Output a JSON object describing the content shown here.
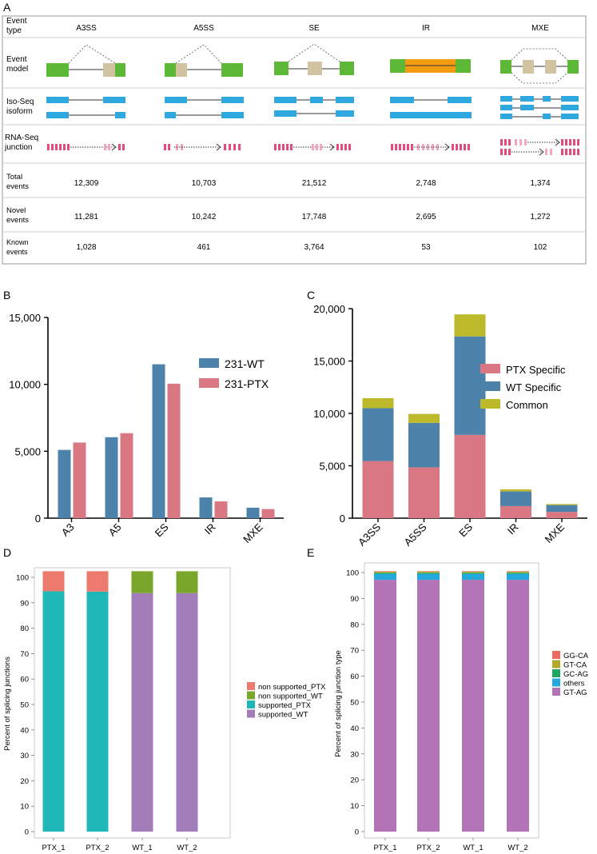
{
  "panel_labels": {
    "a": "A",
    "b": "B",
    "c": "C",
    "d": "D",
    "e": "E"
  },
  "table": {
    "row_labels": {
      "type": [
        "Event",
        "type"
      ],
      "model": [
        "Event",
        "model"
      ],
      "iso": [
        "Iso-Seq",
        "isoform"
      ],
      "rna": [
        "RNA-Seq",
        "junction"
      ],
      "total": [
        "Total",
        "events"
      ],
      "novel": [
        "Novel",
        "events"
      ],
      "known": [
        "Known",
        "events"
      ]
    },
    "event_types": [
      "A3SS",
      "A5SS",
      "SE",
      "IR",
      "MXE"
    ],
    "total_events": [
      "12,309",
      "10,703",
      "21,512",
      "2,748",
      "1,374"
    ],
    "novel_events": [
      "11,281",
      "10,242",
      "17,748",
      "2,695",
      "1,272"
    ],
    "known_events": [
      "1,028",
      "461",
      "3,764",
      "53",
      "102"
    ]
  },
  "colors": {
    "exon_green": "#5cb836",
    "exon_tan": "#d2c3a2",
    "intron_orange": "#f39c12",
    "iso_blue": "#2ea8df",
    "junction_pink": "#e34c7a",
    "junction_light": "#f2a7bd",
    "wt_blue": "#4d83aa",
    "ptx_red": "#d97882",
    "common_olive": "#bcb92a",
    "d_red": "#ec7a6e",
    "d_green": "#7aa72b",
    "d_teal": "#1fb7b8",
    "d_purple": "#a37cba",
    "e_red": "#ec6b61",
    "e_olive": "#b2a82c",
    "e_green": "#1aa65f",
    "e_blue": "#23a9dc",
    "e_pink": "#b374b5"
  },
  "chart_data": [
    {
      "id": "B",
      "type": "bar",
      "categories": [
        "A3",
        "A5",
        "ES",
        "IR",
        "MXE"
      ],
      "series": [
        {
          "name": "231-WT",
          "values": [
            5100,
            6050,
            11500,
            1550,
            780
          ]
        },
        {
          "name": "231-PTX",
          "values": [
            5650,
            6350,
            10050,
            1250,
            680
          ]
        }
      ],
      "ylim": [
        0,
        15000
      ],
      "yticks": [
        "0",
        "5,000",
        "10,000",
        "15,000"
      ],
      "legend": "top-right"
    },
    {
      "id": "C",
      "type": "bar",
      "stacked": true,
      "categories": [
        "A3SS",
        "A5SS",
        "ES",
        "IR",
        "MXE"
      ],
      "series": [
        {
          "name": "PTX Specific",
          "values": [
            5450,
            4850,
            7950,
            1150,
            600
          ]
        },
        {
          "name": "WT Specific",
          "values": [
            5050,
            4250,
            9400,
            1400,
            650
          ]
        },
        {
          "name": "Common",
          "values": [
            950,
            850,
            2100,
            200,
            100
          ]
        }
      ],
      "ylim": [
        0,
        20000
      ],
      "yticks": [
        "0",
        "5,000",
        "10,000",
        "15,000",
        "20,000"
      ],
      "legend": "right"
    },
    {
      "id": "D",
      "type": "bar",
      "stacked": true,
      "categories": [
        "PTX_1",
        "PTX_2",
        "WT_1",
        "WT_2"
      ],
      "series": [
        {
          "name": "supported_PTX",
          "values": [
            94.5,
            94.4,
            0,
            0
          ]
        },
        {
          "name": "supported_WT",
          "values": [
            0,
            0,
            93.8,
            93.8
          ]
        },
        {
          "name": "non supported_PTX",
          "values": [
            7.9,
            8.0,
            0,
            0
          ]
        },
        {
          "name": "non supported_WT",
          "values": [
            0,
            0,
            8.6,
            8.6
          ]
        }
      ],
      "legend_order": [
        "non supported_PTX",
        "non supported_WT",
        "supported_PTX",
        "supported_WT"
      ],
      "ylim": [
        0,
        100
      ],
      "yticks": [
        "0",
        "10",
        "20",
        "30",
        "40",
        "50",
        "60",
        "70",
        "80",
        "90",
        "100"
      ],
      "ylabel": "Percent of splicing junctions"
    },
    {
      "id": "E",
      "type": "bar",
      "stacked": true,
      "categories": [
        "PTX_1",
        "PTX_2",
        "WT_1",
        "WT_2"
      ],
      "series": [
        {
          "name": "GT-AG",
          "values": [
            97.2,
            97.2,
            97.2,
            97.2
          ]
        },
        {
          "name": "others",
          "values": [
            2.3,
            2.3,
            2.3,
            2.3
          ]
        },
        {
          "name": "GC-AG",
          "values": [
            0.4,
            0.4,
            0.4,
            0.4
          ]
        },
        {
          "name": "GT-CA",
          "values": [
            0.4,
            0.4,
            0.4,
            0.4
          ]
        },
        {
          "name": "GG-CA",
          "values": [
            0.2,
            0.2,
            0.2,
            0.2
          ]
        }
      ],
      "legend_order": [
        "GG-CA",
        "GT-CA",
        "GC-AG",
        "others",
        "GT-AG"
      ],
      "ylim": [
        0,
        100
      ],
      "yticks": [
        "0",
        "10",
        "20",
        "30",
        "40",
        "50",
        "60",
        "70",
        "80",
        "90",
        "100"
      ],
      "ylabel": "Percent of splicing junction type"
    }
  ]
}
